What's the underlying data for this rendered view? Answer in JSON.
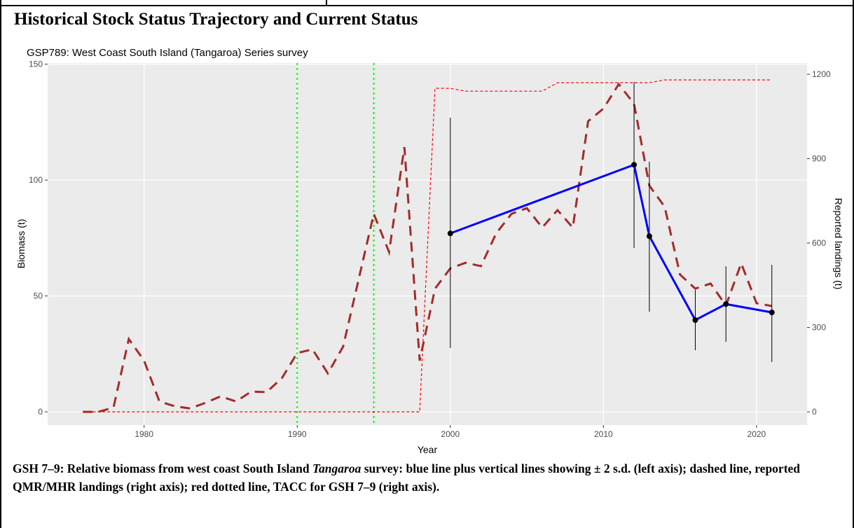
{
  "heading": "Historical Stock Status Trajectory and Current Status",
  "chart_data": {
    "type": "line",
    "subtitle": "GSP789: West Coast South Island (Tangaroa) Series survey",
    "x_label": "Year",
    "y_label": "Biomass (t)",
    "y2_label": "Reported landings (t)",
    "xlim": [
      1973.7,
      2023.3
    ],
    "xticks": [
      1980,
      1990,
      2000,
      2010,
      2020
    ],
    "ylim": [
      -5.7,
      150.5
    ],
    "yticks": [
      0,
      50,
      100,
      150
    ],
    "y2lim": [
      -47,
      1240
    ],
    "y2ticks": [
      0,
      300,
      600,
      900,
      1200
    ],
    "grid": true,
    "vlines": {
      "x": [
        1990,
        1995
      ],
      "color": "#00ff00"
    },
    "series": [
      {
        "color": "#0000ff",
        "x": [
          2000,
          2012,
          2013,
          2016,
          2018,
          2021
        ],
        "values": [
          77.0,
          106.6,
          75.8,
          39.6,
          46.5,
          42.9
        ],
        "lower": [
          27.5,
          70.7,
          43.2,
          26.6,
          30.2,
          21.5
        ],
        "upper": [
          126.9,
          142.3,
          107.9,
          52.6,
          62.8,
          63.4
        ]
      },
      {
        "color": "#a52a2a",
        "axis": "y2",
        "style": "dashed",
        "x": [
          1976,
          1977,
          1978,
          1979,
          1980,
          1981,
          1982,
          1983,
          1984,
          1985,
          1986,
          1987,
          1988,
          1989,
          1990,
          1991,
          1992,
          1993,
          1994,
          1995,
          1996,
          1997,
          1998,
          1999,
          2000,
          2001,
          2002,
          2003,
          2004,
          2005,
          2006,
          2007,
          2008,
          2009,
          2010,
          2011,
          2012,
          2013,
          2014,
          2015,
          2016,
          2017,
          2018,
          2019,
          2020,
          2021
        ],
        "values": [
          0,
          0,
          15,
          259,
          182,
          37,
          20,
          12,
          32,
          55,
          37,
          72,
          70,
          120,
          209,
          222,
          137,
          232,
          468,
          704,
          568,
          941,
          182,
          438,
          510,
          530,
          518,
          635,
          704,
          724,
          655,
          717,
          655,
          1033,
          1078,
          1165,
          1095,
          804,
          729,
          488,
          438,
          456,
          378,
          528,
          386,
          376
        ]
      },
      {
        "color": "#ff0000",
        "axis": "y2",
        "style": "dotted",
        "x": [
          1976,
          1977,
          1978,
          1979,
          1980,
          1981,
          1982,
          1983,
          1984,
          1985,
          1986,
          1987,
          1988,
          1989,
          1990,
          1991,
          1992,
          1993,
          1994,
          1995,
          1996,
          1997,
          1998,
          1999,
          2000,
          2001,
          2002,
          2003,
          2004,
          2005,
          2006,
          2007,
          2008,
          2009,
          2010,
          2011,
          2012,
          2013,
          2014,
          2015,
          2016,
          2017,
          2018,
          2019,
          2020,
          2021
        ],
        "values": [
          0,
          0,
          0,
          0,
          0,
          0,
          0,
          0,
          0,
          0,
          0,
          0,
          0,
          0,
          0,
          0,
          0,
          0,
          0,
          0,
          0,
          0,
          0,
          1150,
          1150,
          1140,
          1140,
          1140,
          1140,
          1140,
          1140,
          1170,
          1170,
          1170,
          1170,
          1170,
          1170,
          1170,
          1180,
          1180,
          1180,
          1180,
          1180,
          1180,
          1180,
          1180
        ]
      }
    ]
  },
  "caption": {
    "text": [
      "GSH 7–9: Relative biomass from west coast South Island ",
      "Tangaroa",
      " survey: blue line plus vertical lines showing ± 2 s.d. (left axis); dashed line, reported QMR/MHR landings (right axis); red dotted line, TACC for GSH 7–9 (right axis)."
    ]
  }
}
